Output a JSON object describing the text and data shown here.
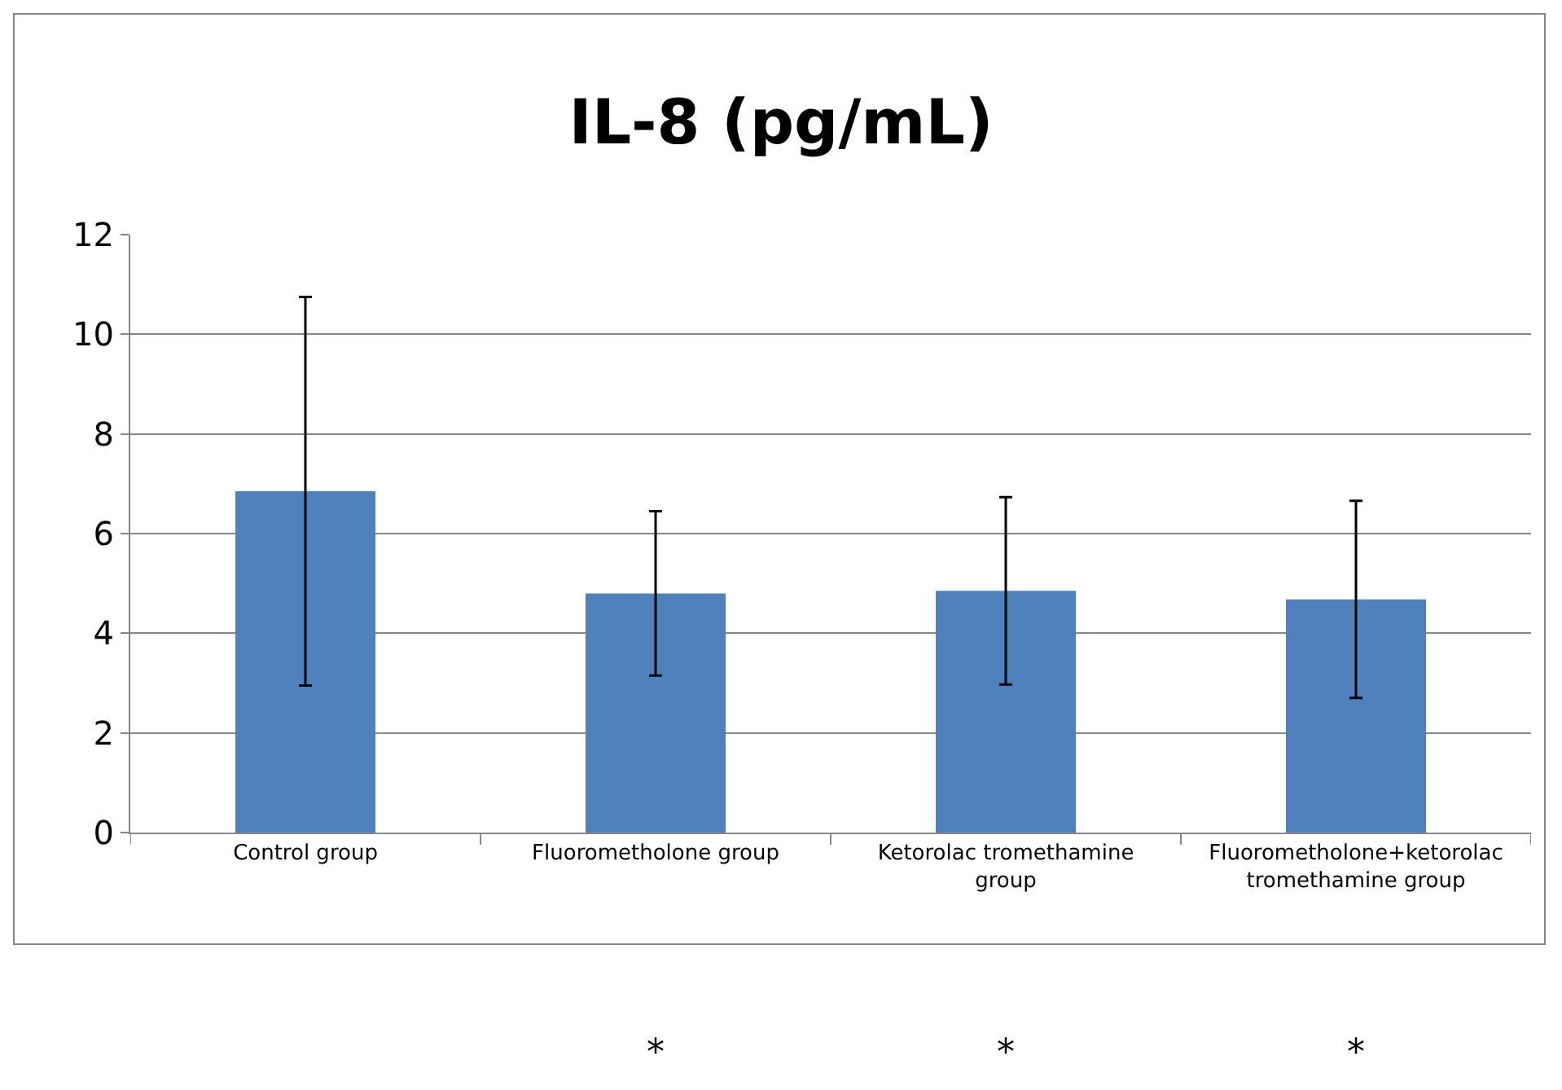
{
  "chart_data": {
    "type": "bar",
    "title": "IL-8 (pg/mL)",
    "categories": [
      "Control group",
      "Fluorometholone group",
      "Ketorolac tromethamine group",
      "Fluorometholone+ketorolac tromethamine group"
    ],
    "values": [
      6.85,
      4.8,
      4.85,
      4.68
    ],
    "errors": [
      3.9,
      1.65,
      1.88,
      1.98
    ],
    "color": "#4f81bd",
    "ylim": [
      0,
      12
    ],
    "yticks": [
      0,
      2,
      4,
      6,
      8,
      10,
      12
    ],
    "grid": "y",
    "annotations": [
      "*",
      "*",
      "*"
    ]
  }
}
